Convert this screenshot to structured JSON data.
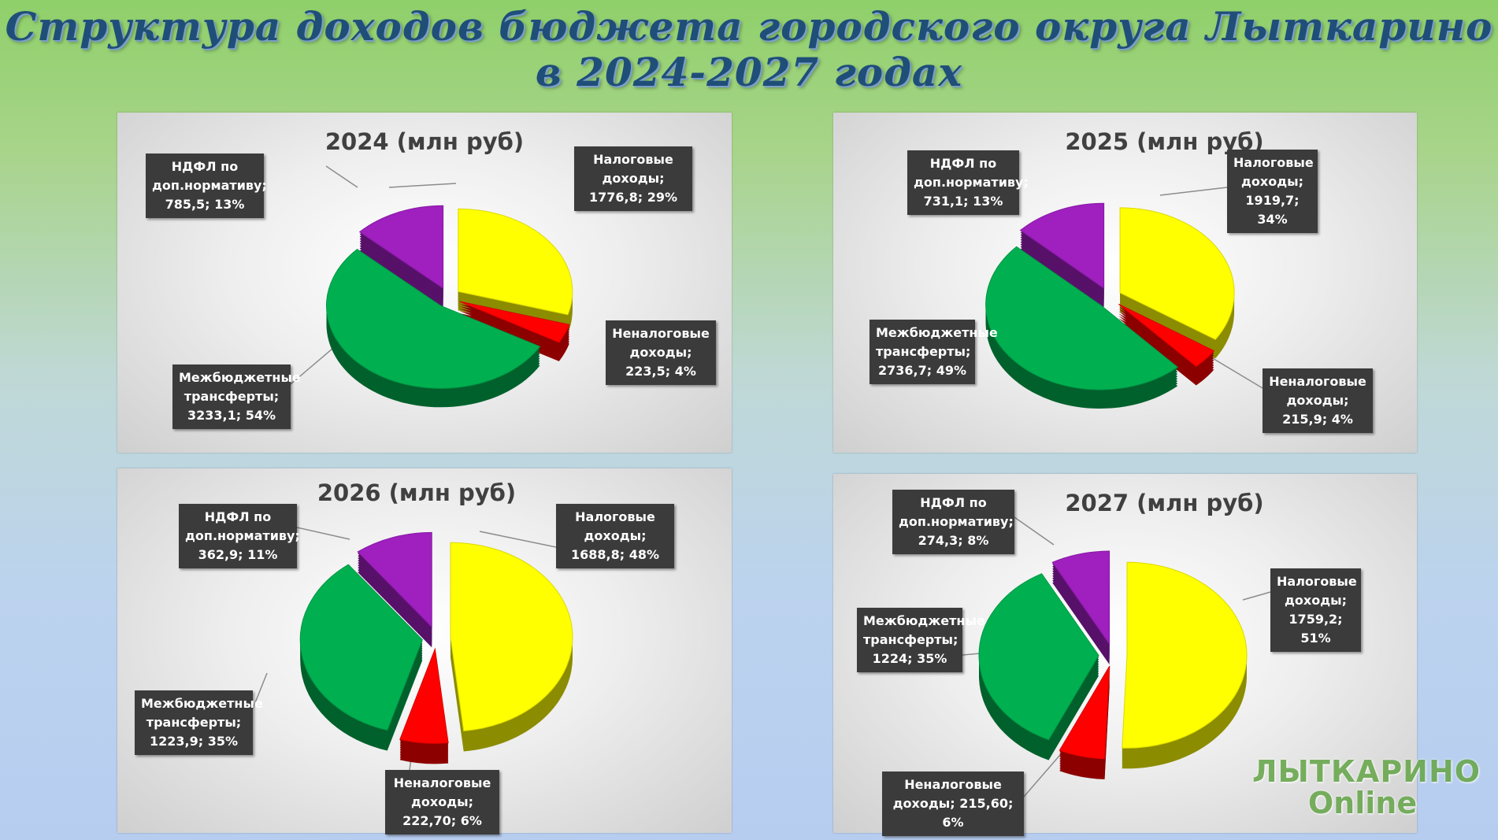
{
  "page": {
    "title_line1": "Структура доходов бюджета городского округа Лыткарино",
    "title_line2": "в 2024-2027 годах"
  },
  "logo": {
    "line1": "ЛЫТКАРИНО",
    "line2": "Online"
  },
  "colors": {
    "tax": "#ffff00",
    "nontax": "#ff0000",
    "transfers": "#00b050",
    "ndfl": "#9f1fbf"
  },
  "chart_data": [
    {
      "type": "pie",
      "title": "2024 (млн руб)",
      "slices": [
        {
          "key": "tax",
          "value": 1776.8,
          "percent": 29,
          "label": "Налоговые доходы; 1776,8; 29%"
        },
        {
          "key": "nontax",
          "value": 223.5,
          "percent": 4,
          "label": "Неналоговые доходы; 223,5; 4%"
        },
        {
          "key": "transfers",
          "value": 3233.1,
          "percent": 54,
          "label": "Межбюджетные трансферты; 3233,1; 54%"
        },
        {
          "key": "ndfl",
          "value": 785.5,
          "percent": 13,
          "label": "НДФЛ по доп.нормативу; 785,5; 13%"
        }
      ]
    },
    {
      "type": "pie",
      "title": "2025 (млн руб)",
      "slices": [
        {
          "key": "tax",
          "value": 1919.7,
          "percent": 34,
          "label": "Налоговые доходы; 1919,7; 34%"
        },
        {
          "key": "nontax",
          "value": 215.9,
          "percent": 4,
          "label": "Неналоговые доходы; 215,9; 4%"
        },
        {
          "key": "transfers",
          "value": 2736.7,
          "percent": 49,
          "label": "Межбюджетные трансферты; 2736,7; 49%"
        },
        {
          "key": "ndfl",
          "value": 731.1,
          "percent": 13,
          "label": "НДФЛ по доп.нормативу; 731,1;  13%"
        }
      ]
    },
    {
      "type": "pie",
      "title": "2026 (млн руб)",
      "slices": [
        {
          "key": "tax",
          "value": 1688.8,
          "percent": 48,
          "label": "Налоговые доходы; 1688,8; 48%"
        },
        {
          "key": "nontax",
          "value": 222.7,
          "percent": 6,
          "label": "Неналоговые доходы; 222,70; 6%"
        },
        {
          "key": "transfers",
          "value": 1223.9,
          "percent": 35,
          "label": "Межбюджетные трансферты; 1223,9; 35%"
        },
        {
          "key": "ndfl",
          "value": 362.9,
          "percent": 11,
          "label": "НДФЛ по доп.нормативу; 362,9; 11%"
        }
      ]
    },
    {
      "type": "pie",
      "title": "2027 (млн руб)",
      "slices": [
        {
          "key": "tax",
          "value": 1759.2,
          "percent": 51,
          "label": "Налоговые доходы; 1759,2; 51%"
        },
        {
          "key": "nontax",
          "value": 215.6,
          "percent": 6,
          "label": "Неналоговые доходы; 215,60; 6%"
        },
        {
          "key": "transfers",
          "value": 1224,
          "percent": 35,
          "label": "Межбюджетные трансферты; 1224; 35%"
        },
        {
          "key": "ndfl",
          "value": 274.3,
          "percent": 8,
          "label": "НДФЛ по доп.нормативу; 274,3; 8%"
        }
      ]
    }
  ]
}
